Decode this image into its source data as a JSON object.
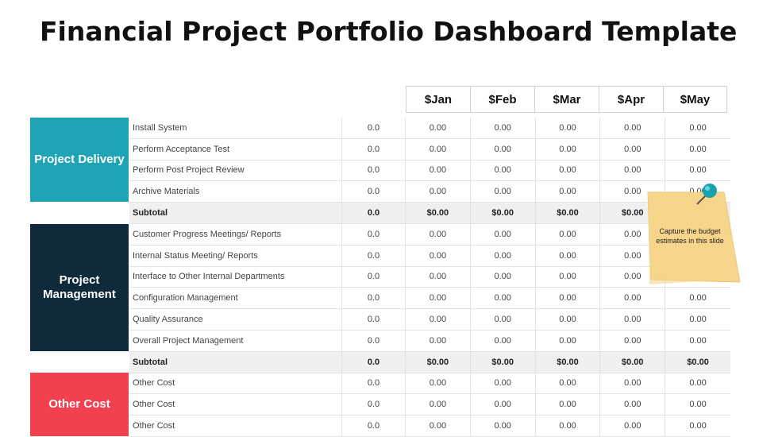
{
  "title": "Financial Project Portfolio Dashboard Template",
  "months": [
    "$Jan",
    "$Feb",
    "$Mar",
    "$Apr",
    "$May"
  ],
  "categories": {
    "delivery": "Project Delivery",
    "management": "Project Management",
    "other": "Other Cost"
  },
  "rows": [
    {
      "task": "Install System",
      "base": "0.0",
      "vals": [
        "0.00",
        "0.00",
        "0.00",
        "0.00",
        "0.00"
      ],
      "subtotal": false
    },
    {
      "task": "Perform Acceptance Test",
      "base": "0.0",
      "vals": [
        "0.00",
        "0.00",
        "0.00",
        "0.00",
        "0.00"
      ],
      "subtotal": false
    },
    {
      "task": "Perform Post Project Review",
      "base": "0.0",
      "vals": [
        "0.00",
        "0.00",
        "0.00",
        "0.00",
        "0.00"
      ],
      "subtotal": false
    },
    {
      "task": "Archive Materials",
      "base": "0.0",
      "vals": [
        "0.00",
        "0.00",
        "0.00",
        "0.00",
        "0.00"
      ],
      "subtotal": false
    },
    {
      "task": "Subtotal",
      "base": "0.0",
      "vals": [
        "$0.00",
        "$0.00",
        "$0.00",
        "$0.00",
        ""
      ],
      "subtotal": true
    },
    {
      "task": "Customer Progress Meetings/ Reports",
      "base": "0.0",
      "vals": [
        "0.00",
        "0.00",
        "0.00",
        "0.00",
        ""
      ],
      "subtotal": false
    },
    {
      "task": "Internal Status Meeting/ Reports",
      "base": "0.0",
      "vals": [
        "0.00",
        "0.00",
        "0.00",
        "0.00",
        ""
      ],
      "subtotal": false
    },
    {
      "task": "Interface to Other Internal Departments",
      "base": "0.0",
      "vals": [
        "0.00",
        "0.00",
        "0.00",
        "0.00",
        ""
      ],
      "subtotal": false
    },
    {
      "task": "Configuration Management",
      "base": "0.0",
      "vals": [
        "0.00",
        "0.00",
        "0.00",
        "0.00",
        "0.00"
      ],
      "subtotal": false
    },
    {
      "task": "Quality Assurance",
      "base": "0.0",
      "vals": [
        "0.00",
        "0.00",
        "0.00",
        "0.00",
        "0.00"
      ],
      "subtotal": false
    },
    {
      "task": "Overall Project Management",
      "base": "0.0",
      "vals": [
        "0.00",
        "0.00",
        "0.00",
        "0.00",
        "0.00"
      ],
      "subtotal": false
    },
    {
      "task": "Subtotal",
      "base": "0.0",
      "vals": [
        "$0.00",
        "$0.00",
        "$0.00",
        "$0.00",
        "$0.00"
      ],
      "subtotal": true
    },
    {
      "task": "Other Cost",
      "base": "0.0",
      "vals": [
        "0.00",
        "0.00",
        "0.00",
        "0.00",
        "0.00"
      ],
      "subtotal": false
    },
    {
      "task": "Other Cost",
      "base": "0.0",
      "vals": [
        "0.00",
        "0.00",
        "0.00",
        "0.00",
        "0.00"
      ],
      "subtotal": false
    },
    {
      "task": "Other Cost",
      "base": "0.0",
      "vals": [
        "0.00",
        "0.00",
        "0.00",
        "0.00",
        "0.00"
      ],
      "subtotal": false
    }
  ],
  "sticky_note": "Capture the budget estimates in this slide",
  "colors": {
    "delivery": "#1fa3b5",
    "management": "#0f2a3a",
    "other": "#f2404f",
    "note": "#f7d58a",
    "pin": "#17a2b0"
  }
}
